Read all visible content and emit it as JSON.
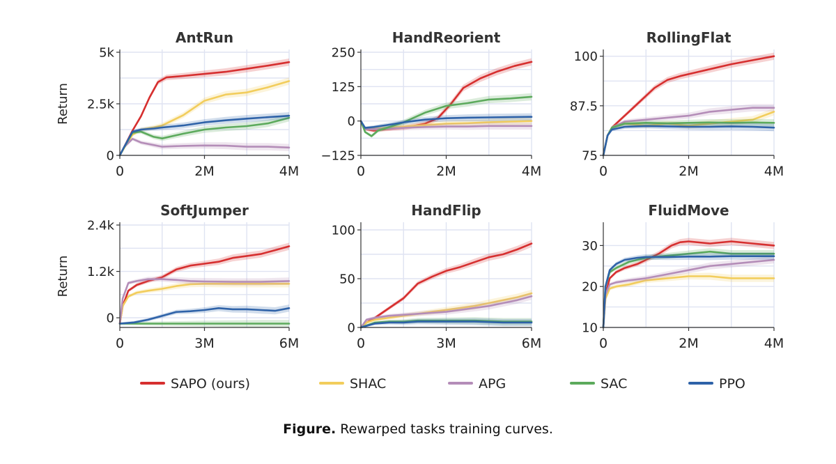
{
  "figure": {
    "caption_label": "Figure.",
    "caption_text": " Rewarped tasks training curves."
  },
  "legend": [
    {
      "name": "SAPO (ours)",
      "color": "#d62f2f"
    },
    {
      "name": "SHAC",
      "color": "#f2cd5c"
    },
    {
      "name": "APG",
      "color": "#b48db8"
    },
    {
      "name": "SAC",
      "color": "#5caa5c"
    },
    {
      "name": "PPO",
      "color": "#2e62a8"
    }
  ],
  "chart_data": [
    {
      "type": "line",
      "title": "AntRun",
      "ylabel": "Return",
      "xlim": [
        0,
        4
      ],
      "ylim": [
        0,
        5000
      ],
      "xticks": [
        0,
        2,
        4
      ],
      "xtick_labels": [
        "0",
        "2M",
        "4M"
      ],
      "yticks": [
        0,
        2500,
        5000
      ],
      "ytick_labels": [
        "0",
        "2.5k",
        "5k"
      ],
      "grid": true,
      "series": [
        {
          "name": "SAPO (ours)",
          "color": "#d62f2f",
          "x": [
            0,
            0.1,
            0.3,
            0.5,
            0.7,
            0.9,
            1.1,
            1.5,
            2,
            2.5,
            3,
            3.5,
            4
          ],
          "y": [
            0,
            400,
            1200,
            1900,
            2800,
            3550,
            3780,
            3850,
            3950,
            4050,
            4200,
            4350,
            4520
          ]
        },
        {
          "name": "SHAC",
          "color": "#f2cd5c",
          "x": [
            0,
            0.1,
            0.3,
            0.5,
            0.8,
            1,
            1.5,
            2,
            2.5,
            3,
            3.5,
            4
          ],
          "y": [
            0,
            350,
            1000,
            1250,
            1350,
            1450,
            1950,
            2650,
            2950,
            3050,
            3300,
            3600
          ]
        },
        {
          "name": "APG",
          "color": "#b48db8",
          "x": [
            0,
            0.1,
            0.3,
            0.5,
            0.8,
            1,
            1.5,
            2,
            2.5,
            3,
            3.5,
            4
          ],
          "y": [
            0,
            400,
            800,
            620,
            500,
            420,
            460,
            480,
            470,
            420,
            420,
            380
          ]
        },
        {
          "name": "SAC",
          "color": "#5caa5c",
          "x": [
            0,
            0.1,
            0.3,
            0.5,
            0.8,
            1,
            1.5,
            2,
            2.5,
            3,
            3.5,
            4
          ],
          "y": [
            0,
            380,
            1100,
            1150,
            900,
            820,
            1050,
            1250,
            1350,
            1420,
            1550,
            1820
          ]
        },
        {
          "name": "PPO",
          "color": "#2e62a8",
          "x": [
            0,
            0.1,
            0.3,
            0.5,
            0.8,
            1,
            1.5,
            2,
            2.5,
            3,
            3.5,
            4
          ],
          "y": [
            0,
            400,
            1150,
            1250,
            1300,
            1350,
            1450,
            1600,
            1700,
            1780,
            1850,
            1920
          ]
        }
      ]
    },
    {
      "type": "line",
      "title": "HandReorient",
      "ylabel": "",
      "xlim": [
        0,
        4
      ],
      "ylim": [
        -125,
        250
      ],
      "xticks": [
        0,
        2,
        4
      ],
      "xtick_labels": [
        "0",
        "2M",
        "4M"
      ],
      "yticks": [
        -125,
        0,
        125,
        250
      ],
      "ytick_labels": [
        "−125",
        "0",
        "125",
        "250"
      ],
      "grid": true,
      "series": [
        {
          "name": "SAPO (ours)",
          "color": "#d62f2f",
          "x": [
            0,
            0.1,
            0.3,
            0.6,
            1,
            1.5,
            1.8,
            2.1,
            2.4,
            2.8,
            3.2,
            3.6,
            4
          ],
          "y": [
            0,
            -30,
            -35,
            -30,
            -25,
            -10,
            10,
            60,
            120,
            155,
            180,
            200,
            215
          ]
        },
        {
          "name": "SHAC",
          "color": "#f2cd5c",
          "x": [
            0,
            0.1,
            0.3,
            0.6,
            1,
            1.5,
            2,
            2.5,
            3,
            3.5,
            4
          ],
          "y": [
            0,
            -30,
            -28,
            -25,
            -20,
            -15,
            -10,
            -8,
            -5,
            -2,
            0
          ]
        },
        {
          "name": "APG",
          "color": "#b48db8",
          "x": [
            0,
            0.1,
            0.3,
            0.6,
            1,
            1.5,
            2,
            2.5,
            3,
            3.5,
            4
          ],
          "y": [
            0,
            -30,
            -30,
            -28,
            -25,
            -22,
            -20,
            -20,
            -18,
            -18,
            -18
          ]
        },
        {
          "name": "SAC",
          "color": "#5caa5c",
          "x": [
            0,
            0.1,
            0.25,
            0.4,
            0.7,
            1,
            1.5,
            2,
            2.5,
            3,
            3.5,
            4
          ],
          "y": [
            0,
            -40,
            -55,
            -35,
            -20,
            -5,
            30,
            55,
            65,
            78,
            82,
            88
          ]
        },
        {
          "name": "PPO",
          "color": "#2e62a8",
          "x": [
            0,
            0.1,
            0.3,
            0.6,
            1,
            1.5,
            2,
            2.5,
            3,
            3.5,
            4
          ],
          "y": [
            0,
            -25,
            -22,
            -15,
            -5,
            5,
            10,
            12,
            13,
            14,
            15
          ]
        }
      ]
    },
    {
      "type": "line",
      "title": "RollingFlat",
      "ylabel": "",
      "xlim": [
        0,
        4
      ],
      "ylim": [
        75,
        101
      ],
      "xticks": [
        0,
        2,
        4
      ],
      "xtick_labels": [
        "0",
        "2M",
        "4M"
      ],
      "yticks": [
        75,
        87.5,
        100
      ],
      "ytick_labels": [
        "75",
        "87.5",
        "100"
      ],
      "grid": true,
      "series": [
        {
          "name": "SAPO (ours)",
          "color": "#d62f2f",
          "x": [
            0,
            0.1,
            0.2,
            0.4,
            0.6,
            0.8,
            1,
            1.2,
            1.5,
            1.8,
            2.2,
            2.6,
            3,
            3.5,
            4
          ],
          "y": [
            75,
            80,
            82,
            84,
            86,
            88,
            90,
            92,
            94,
            95,
            96,
            97,
            98,
            99,
            100
          ]
        },
        {
          "name": "SHAC",
          "color": "#f2cd5c",
          "x": [
            0,
            0.1,
            0.2,
            0.5,
            1,
            1.5,
            2,
            2.5,
            3,
            3.5,
            4
          ],
          "y": [
            75,
            80,
            82,
            83,
            82.5,
            83,
            82.5,
            83,
            83.5,
            84,
            86
          ]
        },
        {
          "name": "APG",
          "color": "#b48db8",
          "x": [
            0,
            0.1,
            0.2,
            0.5,
            1,
            1.5,
            2,
            2.5,
            3,
            3.5,
            4
          ],
          "y": [
            75,
            80,
            82,
            83.5,
            84,
            84.5,
            85,
            86,
            86.5,
            87,
            87
          ]
        },
        {
          "name": "SAC",
          "color": "#5caa5c",
          "x": [
            0,
            0.1,
            0.2,
            0.5,
            1,
            1.5,
            2,
            2.5,
            3,
            3.5,
            4
          ],
          "y": [
            75,
            80,
            82,
            83,
            83.2,
            83.1,
            83.2,
            83.3,
            83.2,
            83.3,
            83.2
          ]
        },
        {
          "name": "PPO",
          "color": "#2e62a8",
          "x": [
            0,
            0.1,
            0.2,
            0.5,
            1,
            1.5,
            2,
            2.5,
            3,
            3.5,
            4
          ],
          "y": [
            75,
            80,
            81.5,
            82.2,
            82.4,
            82.3,
            82.2,
            82.2,
            82.3,
            82.2,
            82
          ]
        }
      ]
    },
    {
      "type": "line",
      "title": "SoftJumper",
      "ylabel": "Return",
      "xlim": [
        0,
        6
      ],
      "ylim": [
        -250,
        2400
      ],
      "xticks": [
        0,
        3,
        6
      ],
      "xtick_labels": [
        "0",
        "3M",
        "6M"
      ],
      "yticks": [
        0,
        1200,
        2400
      ],
      "ytick_labels": [
        "0",
        "1.2k",
        "2.4k"
      ],
      "grid": true,
      "series": [
        {
          "name": "SAPO (ours)",
          "color": "#d62f2f",
          "x": [
            0,
            0.1,
            0.3,
            0.6,
            1,
            1.5,
            2,
            2.5,
            3,
            3.5,
            4,
            4.5,
            5,
            5.5,
            6
          ],
          "y": [
            -150,
            300,
            700,
            850,
            950,
            1050,
            1250,
            1350,
            1400,
            1450,
            1550,
            1600,
            1650,
            1750,
            1850
          ]
        },
        {
          "name": "SHAC",
          "color": "#f2cd5c",
          "x": [
            0,
            0.1,
            0.3,
            0.6,
            1,
            1.5,
            2,
            2.5,
            3,
            3.5,
            4,
            5,
            6
          ],
          "y": [
            -150,
            300,
            550,
            650,
            700,
            750,
            820,
            870,
            880,
            880,
            880,
            880,
            880
          ]
        },
        {
          "name": "APG",
          "color": "#b48db8",
          "x": [
            0,
            0.1,
            0.3,
            0.6,
            1,
            1.5,
            2,
            2.5,
            3,
            4,
            5,
            6
          ],
          "y": [
            -150,
            500,
            900,
            950,
            1000,
            1000,
            980,
            950,
            940,
            930,
            930,
            950
          ]
        },
        {
          "name": "SAC",
          "color": "#5caa5c",
          "x": [
            0,
            0.5,
            1,
            2,
            3,
            4,
            5,
            6
          ],
          "y": [
            -150,
            -150,
            -150,
            -150,
            -150,
            -150,
            -150,
            -150
          ]
        },
        {
          "name": "PPO",
          "color": "#2e62a8",
          "x": [
            0,
            0.5,
            1,
            1.5,
            2,
            2.5,
            3,
            3.5,
            4,
            4.5,
            5,
            5.5,
            6
          ],
          "y": [
            -150,
            -120,
            -50,
            50,
            150,
            170,
            200,
            250,
            220,
            220,
            200,
            180,
            250
          ]
        }
      ]
    },
    {
      "type": "line",
      "title": "HandFlip",
      "ylabel": "",
      "xlim": [
        0,
        6
      ],
      "ylim": [
        0,
        105
      ],
      "xticks": [
        0,
        3,
        6
      ],
      "xtick_labels": [
        "0",
        "3M",
        "6M"
      ],
      "yticks": [
        0,
        50,
        100
      ],
      "ytick_labels": [
        "0",
        "50",
        "100"
      ],
      "grid": true,
      "series": [
        {
          "name": "SAPO (ours)",
          "color": "#d62f2f",
          "x": [
            0,
            0.2,
            0.5,
            1,
            1.5,
            2,
            2.5,
            3,
            3.5,
            4,
            4.5,
            5,
            5.5,
            6
          ],
          "y": [
            0,
            5,
            10,
            20,
            30,
            45,
            52,
            58,
            62,
            67,
            72,
            75,
            80,
            86
          ]
        },
        {
          "name": "SHAC",
          "color": "#f2cd5c",
          "x": [
            0,
            0.2,
            0.5,
            1,
            1.5,
            2,
            2.5,
            3,
            3.5,
            4,
            4.5,
            5,
            5.5,
            6
          ],
          "y": [
            0,
            5,
            8,
            10,
            12,
            14,
            16,
            18,
            20,
            22,
            25,
            28,
            31,
            35
          ]
        },
        {
          "name": "APG",
          "color": "#b48db8",
          "x": [
            0,
            0.2,
            0.5,
            1,
            1.5,
            2,
            2.5,
            3,
            3.5,
            4,
            4.5,
            5,
            5.5,
            6
          ],
          "y": [
            0,
            8,
            10,
            12,
            13,
            14,
            15,
            16,
            18,
            20,
            22,
            25,
            28,
            32
          ]
        },
        {
          "name": "SAC",
          "color": "#5caa5c",
          "x": [
            0,
            0.5,
            1,
            1.5,
            2,
            3,
            4,
            5,
            6
          ],
          "y": [
            0,
            5,
            6,
            6,
            7,
            7,
            7,
            6,
            6
          ]
        },
        {
          "name": "PPO",
          "color": "#2e62a8",
          "x": [
            0,
            0.5,
            1,
            1.5,
            2,
            3,
            4,
            5,
            6
          ],
          "y": [
            0,
            4,
            5,
            5,
            6,
            6,
            6,
            5,
            5
          ]
        }
      ]
    },
    {
      "type": "line",
      "title": "FluidMove",
      "ylabel": "",
      "xlim": [
        0,
        4
      ],
      "ylim": [
        10,
        35
      ],
      "xticks": [
        0,
        2,
        4
      ],
      "xtick_labels": [
        "0",
        "2M",
        "4M"
      ],
      "yticks": [
        10,
        20,
        30
      ],
      "ytick_labels": [
        "10",
        "20",
        "30"
      ],
      "grid": true,
      "series": [
        {
          "name": "SAPO (ours)",
          "color": "#d62f2f",
          "x": [
            0,
            0.05,
            0.15,
            0.3,
            0.5,
            0.8,
            1,
            1.3,
            1.6,
            1.8,
            2,
            2.5,
            3,
            3.5,
            4
          ],
          "y": [
            10,
            18,
            22,
            23.5,
            24.5,
            25.5,
            26.5,
            28,
            30,
            30.8,
            31,
            30.5,
            31,
            30.5,
            30
          ]
        },
        {
          "name": "SHAC",
          "color": "#f2cd5c",
          "x": [
            0,
            0.05,
            0.15,
            0.3,
            0.6,
            1,
            1.5,
            2,
            2.5,
            3,
            3.5,
            4
          ],
          "y": [
            10,
            17,
            19.5,
            20,
            20.5,
            21.5,
            22,
            22.5,
            22.5,
            22,
            22,
            22
          ]
        },
        {
          "name": "APG",
          "color": "#b48db8",
          "x": [
            0,
            0.05,
            0.15,
            0.3,
            0.6,
            1,
            1.5,
            2,
            2.5,
            3,
            3.5,
            4
          ],
          "y": [
            10,
            18,
            20.5,
            21,
            21.5,
            22,
            23,
            24,
            25,
            25.5,
            26,
            26.5
          ]
        },
        {
          "name": "SAC",
          "color": "#5caa5c",
          "x": [
            0,
            0.05,
            0.15,
            0.3,
            0.6,
            1,
            1.5,
            2,
            2.5,
            3,
            3.5,
            4
          ],
          "y": [
            10,
            20,
            23.5,
            24.5,
            26,
            27,
            27.5,
            28,
            28.5,
            28,
            28,
            28
          ]
        },
        {
          "name": "PPO",
          "color": "#2e62a8",
          "x": [
            0,
            0.05,
            0.15,
            0.3,
            0.5,
            0.8,
            1,
            1.5,
            2,
            2.5,
            3,
            3.5,
            4
          ],
          "y": [
            10,
            20,
            24,
            25.5,
            26.5,
            27,
            27.2,
            27.2,
            27.3,
            27.3,
            27.4,
            27.4,
            27.4
          ]
        }
      ]
    }
  ]
}
